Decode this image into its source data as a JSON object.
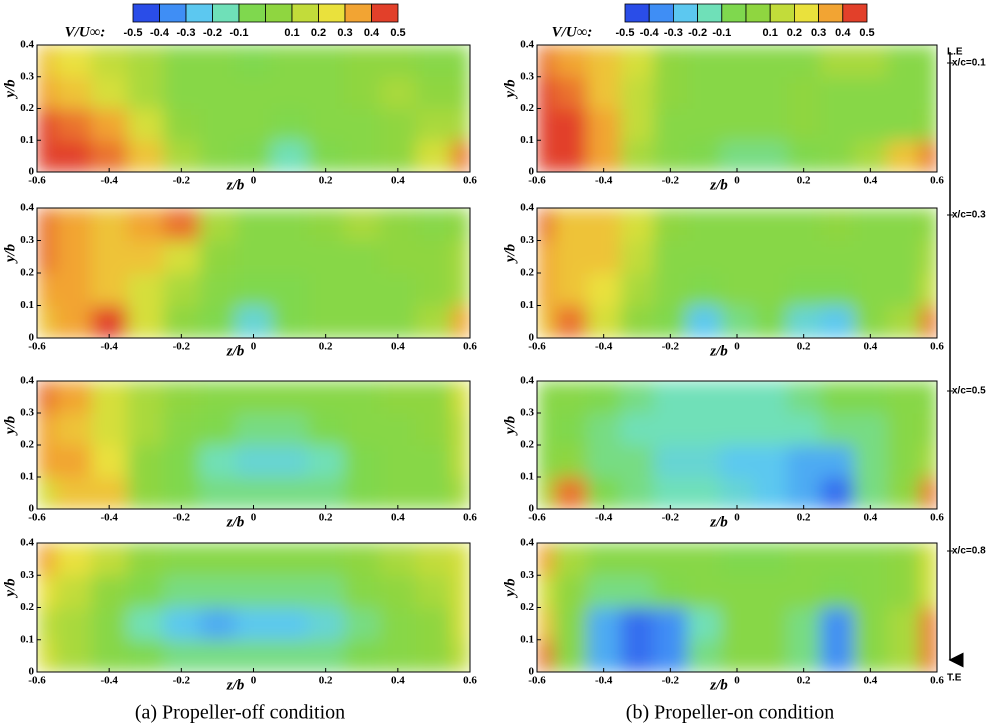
{
  "chart_data": [
    {
      "type": "contour",
      "xlabel": "z/b",
      "ylabel": "y/b",
      "xlim": [
        -0.6,
        0.6
      ],
      "ylim": [
        0,
        0.4
      ],
      "xticks": [
        -0.6,
        -0.4,
        -0.2,
        0,
        0.2,
        0.4,
        0.6
      ],
      "yticks": [
        0,
        0.1,
        0.2,
        0.3,
        0.4
      ],
      "x": [
        -0.6,
        -0.5,
        -0.4,
        -0.3,
        -0.2,
        -0.1,
        0,
        0.1,
        0.2,
        0.3,
        0.4,
        0.5,
        0.6
      ],
      "y": [
        0.05,
        0.15,
        0.25,
        0.35
      ],
      "z": [
        [
          0.45,
          0.45,
          0.4,
          0.3,
          0.1,
          0,
          -0.05,
          -0.15,
          -0.05,
          0,
          0.05,
          0.2,
          0.4
        ],
        [
          0.45,
          0.4,
          0.35,
          0.2,
          0.05,
          0,
          0,
          -0.05,
          0,
          0,
          0.05,
          0.1,
          0.1
        ],
        [
          0.35,
          0.3,
          0.2,
          0.1,
          0,
          0,
          0,
          0,
          0,
          0.05,
          0.1,
          0.05,
          0.05
        ],
        [
          0.3,
          0.25,
          0.15,
          0.1,
          0,
          0,
          -0.05,
          0,
          0,
          0.05,
          0.05,
          0,
          0
        ]
      ]
    },
    {
      "type": "contour",
      "xlabel": "z/b",
      "ylabel": "y/b",
      "xlim": [
        -0.6,
        0.6
      ],
      "ylim": [
        0,
        0.4
      ],
      "xticks": [
        -0.6,
        -0.4,
        -0.2,
        0,
        0.2,
        0.4,
        0.6
      ],
      "yticks": [
        0,
        0.1,
        0.2,
        0.3,
        0.4
      ],
      "x": [
        -0.6,
        -0.5,
        -0.4,
        -0.3,
        -0.2,
        -0.1,
        0,
        0.1,
        0.2,
        0.3,
        0.4,
        0.5,
        0.6
      ],
      "y": [
        0.05,
        0.15,
        0.25,
        0.35
      ],
      "z": [
        [
          0.3,
          0.35,
          0.45,
          0.2,
          0.05,
          -0.05,
          -0.2,
          -0.05,
          0,
          0,
          0,
          0.1,
          0.35
        ],
        [
          0.35,
          0.35,
          0.3,
          0.2,
          0.1,
          0,
          -0.05,
          -0.05,
          0,
          0,
          0,
          0.05,
          0.1
        ],
        [
          0.4,
          0.35,
          0.3,
          0.3,
          0.2,
          0.05,
          0,
          0,
          0,
          0,
          0.05,
          0.05,
          0.1
        ],
        [
          0.4,
          0.35,
          0.3,
          0.35,
          0.4,
          0.1,
          0,
          0,
          0.05,
          0.1,
          0.05,
          0,
          0.05
        ]
      ]
    },
    {
      "type": "contour",
      "xlabel": "z/b",
      "ylabel": "y/b",
      "xlim": [
        -0.6,
        0.6
      ],
      "ylim": [
        0,
        0.4
      ],
      "xticks": [
        -0.6,
        -0.4,
        -0.2,
        0,
        0.2,
        0.4,
        0.6
      ],
      "yticks": [
        0,
        0.1,
        0.2,
        0.3,
        0.4
      ],
      "x": [
        -0.6,
        -0.5,
        -0.4,
        -0.3,
        -0.2,
        -0.1,
        0,
        0.1,
        0.2,
        0.3,
        0.4,
        0.5,
        0.6
      ],
      "y": [
        0.05,
        0.15,
        0.25,
        0.35
      ],
      "z": [
        [
          0.2,
          0.3,
          0.3,
          0.05,
          -0.05,
          -0.1,
          -0.1,
          -0.1,
          -0.1,
          -0.05,
          0,
          0,
          0.1
        ],
        [
          0.35,
          0.35,
          0.25,
          0.05,
          -0.05,
          -0.15,
          -0.2,
          -0.2,
          -0.15,
          -0.05,
          0,
          0,
          0.15
        ],
        [
          0.35,
          0.3,
          0.2,
          0.1,
          0,
          -0.05,
          -0.1,
          -0.1,
          -0.05,
          0,
          0,
          0.05,
          0.15
        ],
        [
          0.4,
          0.35,
          0.2,
          0.1,
          0.05,
          0,
          0,
          0,
          0,
          0,
          0.05,
          0.05,
          0.2
        ]
      ]
    },
    {
      "type": "contour",
      "xlabel": "z/b",
      "ylabel": "y/b",
      "xlim": [
        -0.6,
        0.6
      ],
      "ylim": [
        0,
        0.4
      ],
      "xticks": [
        -0.6,
        -0.4,
        -0.2,
        0,
        0.2,
        0.4,
        0.6
      ],
      "yticks": [
        0,
        0.1,
        0.2,
        0.3,
        0.4
      ],
      "x": [
        -0.6,
        -0.5,
        -0.4,
        -0.3,
        -0.2,
        -0.1,
        0,
        0.1,
        0.2,
        0.3,
        0.4,
        0.5,
        0.6
      ],
      "y": [
        0.05,
        0.15,
        0.25,
        0.35
      ],
      "z": [
        [
          0.2,
          0.1,
          0,
          -0.05,
          -0.1,
          -0.1,
          -0.1,
          -0.1,
          -0.1,
          -0.05,
          0,
          0.05,
          0.15
        ],
        [
          0.15,
          0.1,
          0,
          -0.15,
          -0.25,
          -0.3,
          -0.25,
          -0.25,
          -0.2,
          -0.1,
          0,
          0.05,
          0.2
        ],
        [
          0.25,
          0.15,
          0.05,
          -0.05,
          -0.1,
          -0.1,
          -0.1,
          -0.1,
          -0.1,
          0,
          0.05,
          0.1,
          0.2
        ],
        [
          0.35,
          0.25,
          0.15,
          0.05,
          0,
          0,
          0,
          0,
          0,
          0.05,
          0.1,
          0.15,
          0.2
        ]
      ]
    },
    {
      "type": "contour",
      "xlabel": "z/b",
      "ylabel": "y/b",
      "xlim": [
        -0.6,
        0.6
      ],
      "ylim": [
        0,
        0.4
      ],
      "xticks": [
        -0.6,
        -0.4,
        -0.2,
        0,
        0.2,
        0.4,
        0.6
      ],
      "yticks": [
        0,
        0.1,
        0.2,
        0.3,
        0.4
      ],
      "x": [
        -0.6,
        -0.5,
        -0.4,
        -0.3,
        -0.2,
        -0.1,
        0,
        0.1,
        0.2,
        0.3,
        0.4,
        0.5,
        0.6
      ],
      "y": [
        0.05,
        0.15,
        0.25,
        0.35
      ],
      "z": [
        [
          0.45,
          0.45,
          0.35,
          0.1,
          0,
          -0.05,
          -0.1,
          -0.1,
          -0.05,
          0,
          0.1,
          0.3,
          0.4
        ],
        [
          0.45,
          0.45,
          0.35,
          0.15,
          0,
          0,
          0,
          0,
          0.05,
          0,
          0,
          0,
          0.05
        ],
        [
          0.45,
          0.4,
          0.3,
          0.15,
          0.05,
          0,
          0,
          0,
          0.05,
          0,
          0,
          0,
          0
        ],
        [
          0.4,
          0.35,
          0.3,
          0.2,
          0.05,
          0,
          0,
          0,
          0,
          0.1,
          0.1,
          0,
          0
        ]
      ]
    },
    {
      "type": "contour",
      "xlabel": "z/b",
      "ylabel": "y/b",
      "xlim": [
        -0.6,
        0.6
      ],
      "ylim": [
        0,
        0.4
      ],
      "xticks": [
        -0.6,
        -0.4,
        -0.2,
        0,
        0.2,
        0.4,
        0.6
      ],
      "yticks": [
        0,
        0.1,
        0.2,
        0.3,
        0.4
      ],
      "x": [
        -0.6,
        -0.5,
        -0.4,
        -0.3,
        -0.2,
        -0.1,
        0,
        0.1,
        0.2,
        0.3,
        0.4,
        0.5,
        0.6
      ],
      "y": [
        0.05,
        0.15,
        0.25,
        0.35
      ],
      "z": [
        [
          0.3,
          0.4,
          0.2,
          0.05,
          -0.05,
          -0.25,
          -0.1,
          -0.05,
          -0.2,
          -0.25,
          0,
          0.1,
          0.4
        ],
        [
          0.35,
          0.3,
          0.25,
          0.1,
          0,
          -0.05,
          0,
          0,
          -0.05,
          -0.05,
          0,
          0,
          0.15
        ],
        [
          0.35,
          0.3,
          0.3,
          0.15,
          0,
          0,
          0,
          0,
          0,
          0,
          0,
          0,
          0.1
        ],
        [
          0.4,
          0.3,
          0.3,
          0.2,
          0.05,
          0,
          0,
          0,
          0,
          0.05,
          0,
          0,
          0.05
        ]
      ]
    },
    {
      "type": "contour",
      "xlabel": "z/b",
      "ylabel": "y/b",
      "xlim": [
        -0.6,
        0.6
      ],
      "ylim": [
        0,
        0.4
      ],
      "xticks": [
        -0.6,
        -0.4,
        -0.2,
        0,
        0.2,
        0.4,
        0.6
      ],
      "yticks": [
        0,
        0.1,
        0.2,
        0.3,
        0.4
      ],
      "x": [
        -0.6,
        -0.5,
        -0.4,
        -0.3,
        -0.2,
        -0.1,
        0,
        0.1,
        0.2,
        0.3,
        0.4,
        0.5,
        0.6
      ],
      "y": [
        0.05,
        0.15,
        0.25,
        0.35
      ],
      "z": [
        [
          0.1,
          0.4,
          -0.05,
          -0.1,
          -0.15,
          -0.15,
          -0.2,
          -0.25,
          -0.3,
          -0.4,
          -0.1,
          0.05,
          0.4
        ],
        [
          0,
          0.05,
          -0.1,
          -0.1,
          -0.2,
          -0.2,
          -0.25,
          -0.25,
          -0.3,
          -0.3,
          -0.1,
          0,
          0.1
        ],
        [
          0,
          -0.05,
          -0.1,
          -0.15,
          -0.15,
          -0.15,
          -0.15,
          -0.15,
          -0.15,
          -0.1,
          -0.1,
          0,
          0.05
        ],
        [
          0,
          0,
          -0.05,
          -0.1,
          -0.15,
          -0.15,
          -0.15,
          -0.15,
          -0.1,
          -0.05,
          -0.05,
          0,
          0
        ]
      ]
    },
    {
      "type": "contour",
      "xlabel": "z/b",
      "ylabel": "y/b",
      "xlim": [
        -0.6,
        0.6
      ],
      "ylim": [
        0,
        0.4
      ],
      "xticks": [
        -0.6,
        -0.4,
        -0.2,
        0,
        0.2,
        0.4,
        0.6
      ],
      "yticks": [
        0,
        0.1,
        0.2,
        0.3,
        0.4
      ],
      "x": [
        -0.6,
        -0.5,
        -0.4,
        -0.3,
        -0.2,
        -0.1,
        0,
        0.1,
        0.2,
        0.3,
        0.4,
        0.5,
        0.6
      ],
      "y": [
        0.05,
        0.15,
        0.25,
        0.35
      ],
      "z": [
        [
          0.4,
          0,
          -0.3,
          -0.4,
          -0.35,
          -0.1,
          0,
          0,
          -0.1,
          -0.35,
          0,
          0.1,
          0.4
        ],
        [
          0.3,
          0,
          -0.3,
          -0.4,
          -0.35,
          -0.15,
          0,
          0,
          -0.1,
          -0.35,
          0,
          0.1,
          0.4
        ],
        [
          0.2,
          0.05,
          -0.1,
          -0.1,
          -0.05,
          0,
          0,
          0,
          0,
          -0.05,
          0,
          0.05,
          0.2
        ],
        [
          0.35,
          0.1,
          0,
          0,
          0,
          0,
          -0.05,
          -0.05,
          0,
          0,
          0,
          0.05,
          0.2
        ]
      ]
    }
  ],
  "colorbars": [
    {
      "title": "V/U∞:",
      "ticks": [
        -0.5,
        -0.4,
        -0.3,
        -0.2,
        -0.1,
        0.1,
        0.2,
        0.3,
        0.4,
        0.5
      ],
      "edges": [
        -0.5,
        -0.4,
        -0.3,
        -0.2,
        -0.1,
        0,
        0.1,
        0.2,
        0.3,
        0.4,
        0.5
      ],
      "colors": [
        "#2a4de8",
        "#3f8ef5",
        "#5cc8f0",
        "#6fe0b8",
        "#7fd84e",
        "#8fd640",
        "#c2dc3a",
        "#eae13c",
        "#f2a433",
        "#e2402a"
      ]
    },
    {
      "title": "V/U∞:",
      "ticks": [
        -0.5,
        -0.4,
        -0.3,
        -0.2,
        -0.1,
        0.1,
        0.2,
        0.3,
        0.4,
        0.5
      ],
      "edges": [
        -0.5,
        -0.4,
        -0.3,
        -0.2,
        -0.1,
        0,
        0.1,
        0.2,
        0.3,
        0.4,
        0.5
      ],
      "colors": [
        "#2a4de8",
        "#3f8ef5",
        "#5cc8f0",
        "#6fe0b8",
        "#7fd84e",
        "#8fd640",
        "#c2dc3a",
        "#eae13c",
        "#f2a433",
        "#e2402a"
      ]
    }
  ],
  "captions": [
    "(a) Propeller-off condition",
    "(b) Propeller-on condition"
  ],
  "stations": [
    "L.E",
    "x/c=0.1",
    "x/c=0.3",
    "x/c=0.5",
    "x/c=0.8",
    "T.E"
  ]
}
